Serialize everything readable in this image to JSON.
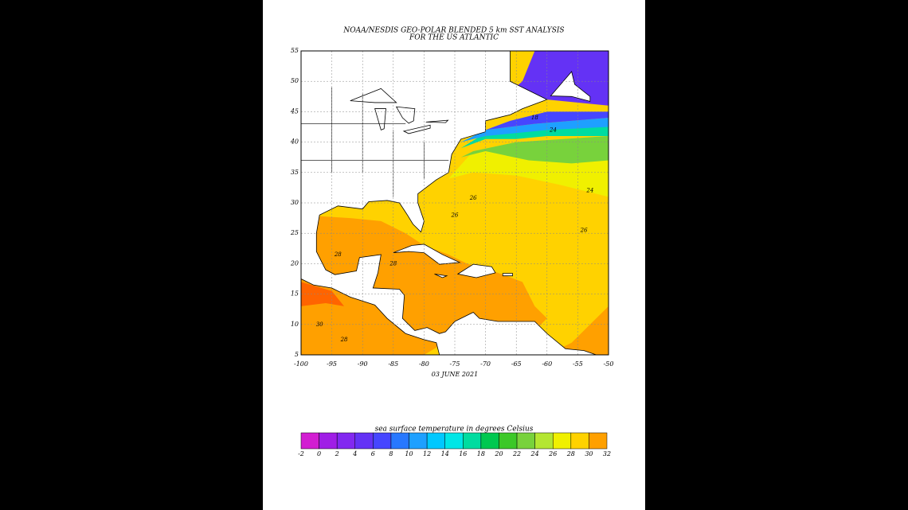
{
  "map": {
    "title": "NOAA/NESDIS GEO-POLAR BLENDED 5 km SST ANALYSIS",
    "subtitle": "FOR THE US ATLANTIC",
    "date": "03 JUNE 2021",
    "lon_range": [
      -100,
      -50
    ],
    "lat_range": [
      5,
      55
    ],
    "lon_ticks": [
      -100,
      -95,
      -90,
      -85,
      -80,
      -75,
      -70,
      -65,
      -60,
      -55,
      -50
    ],
    "lat_ticks": [
      5,
      10,
      15,
      20,
      25,
      30,
      35,
      40,
      45,
      50,
      55
    ],
    "grid": true,
    "contour_labels": [
      "30",
      "28",
      "28",
      "26",
      "26",
      "24",
      "24",
      "26",
      "28",
      "18"
    ]
  },
  "colorbar": {
    "label": "sea surface temperature in degrees Celsius",
    "ticks": [
      -2,
      0,
      2,
      4,
      6,
      8,
      10,
      12,
      14,
      16,
      18,
      20,
      22,
      24,
      26,
      28,
      30,
      32
    ],
    "colors": [
      "#d21ed2",
      "#a01ee6",
      "#8228f0",
      "#6432f5",
      "#4646ff",
      "#2878ff",
      "#1ea0ff",
      "#00c8ff",
      "#00e6e6",
      "#00dca0",
      "#00c850",
      "#3cc828",
      "#78d23c",
      "#b4e632",
      "#f0f000",
      "#ffd200",
      "#ffa000",
      "#ff6400"
    ]
  }
}
